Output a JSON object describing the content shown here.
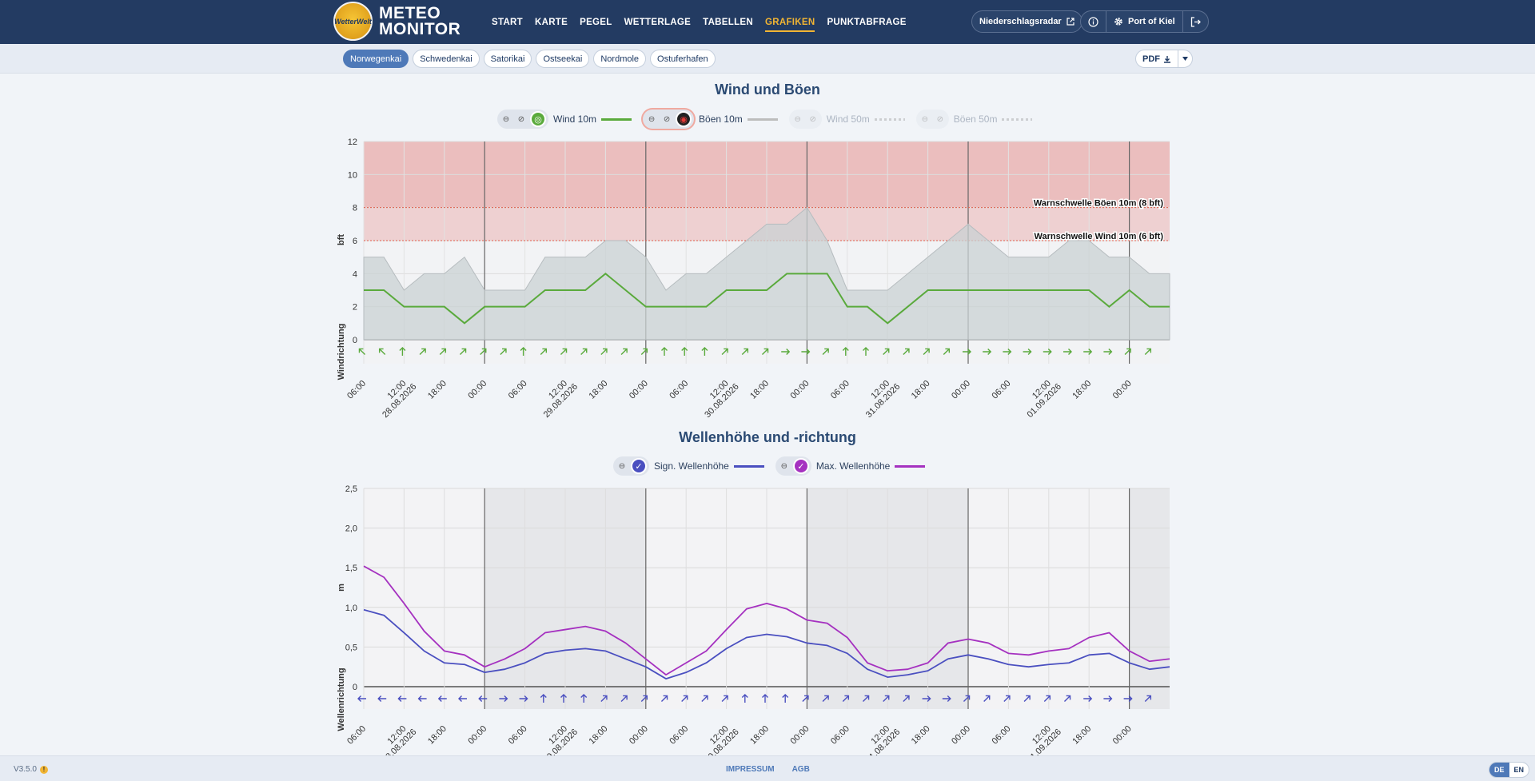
{
  "header": {
    "logo_badge": "WetterWelt",
    "logo_line1": "METEO",
    "logo_line2": "MONITOR",
    "nav": [
      {
        "label": "START",
        "active": false
      },
      {
        "label": "KARTE",
        "active": false
      },
      {
        "label": "PEGEL",
        "active": false
      },
      {
        "label": "WETTERLAGE",
        "active": false
      },
      {
        "label": "TABELLEN",
        "active": false
      },
      {
        "label": "GRAFIKEN",
        "active": true
      },
      {
        "label": "PUNKTABFRAGE",
        "active": false
      }
    ],
    "radar_label": "Niederschlagsradar",
    "location_label": "Port of Kiel"
  },
  "subnav": {
    "locations": [
      "Norwegenkai",
      "Schwedenkai",
      "Satorikai",
      "Ostseekai",
      "Nordmole",
      "Ostuferhafen"
    ],
    "active_index": 0,
    "pdf_label": "PDF"
  },
  "colors": {
    "header_bg": "#233b62",
    "accent": "#f2b533",
    "wind10": "#5aaa3c",
    "gust10": "#bdbdbd",
    "sign_wave": "#4a4fc0",
    "max_wave": "#a531c0",
    "warn_zone": "#e8a6a6"
  },
  "time_axis": {
    "ticks": [
      "06:00",
      "12:00",
      "18:00",
      "00:00",
      "06:00",
      "12:00",
      "18:00",
      "00:00",
      "06:00",
      "12:00",
      "18:00",
      "00:00",
      "06:00",
      "12:00",
      "18:00",
      "00:00",
      "06:00",
      "12:00",
      "18:00",
      "00:00"
    ],
    "dates": [
      {
        "tick_index": 1,
        "label": "28.08.2026"
      },
      {
        "tick_index": 5,
        "label": "29.08.2026"
      },
      {
        "tick_index": 9,
        "label": "30.08.2026"
      },
      {
        "tick_index": 13,
        "label": "31.08.2026"
      },
      {
        "tick_index": 17,
        "label": "01.09.2026"
      }
    ]
  },
  "chart_data": [
    {
      "type": "area",
      "title": "Wind und Böen",
      "ylabel": "bft",
      "y2label": "Windrichtung",
      "ylim": [
        0,
        12
      ],
      "yticks": [
        "0",
        "2",
        "4",
        "6",
        "8",
        "10",
        "12"
      ],
      "x_hours_from_start": [
        0,
        3,
        6,
        9,
        12,
        15,
        18,
        21,
        24,
        27,
        30,
        33,
        36,
        39,
        42,
        45,
        48,
        51,
        54,
        57,
        60,
        63,
        66,
        69,
        72,
        75,
        78,
        81,
        84,
        87,
        90,
        93,
        96,
        99,
        102,
        105,
        108,
        111,
        114,
        117
      ],
      "thresholds": [
        {
          "label": "Warnschwelle Böen 10m (8 bft)",
          "value": 8
        },
        {
          "label": "Warnschwelle Wind 10m (6 bft)",
          "value": 6
        }
      ],
      "series": [
        {
          "name": "Wind 10m",
          "enabled": true,
          "color": "#5aaa3c",
          "values": [
            3,
            3,
            2,
            2,
            2,
            1,
            2,
            2,
            2,
            3,
            3,
            3,
            4,
            3,
            2,
            2,
            2,
            2,
            3,
            3,
            3,
            4,
            4,
            4,
            2,
            2,
            1,
            2,
            3,
            3,
            3,
            3,
            3,
            3,
            3,
            3,
            3,
            2,
            3,
            2
          ]
        },
        {
          "name": "Böen 10m",
          "enabled": true,
          "color": "#bdbdbd",
          "values": [
            5,
            5,
            3,
            4,
            4,
            5,
            3,
            3,
            3,
            5,
            5,
            5,
            6,
            6,
            5,
            3,
            4,
            4,
            5,
            6,
            7,
            7,
            8,
            6,
            3,
            3,
            3,
            4,
            5,
            6,
            7,
            6,
            5,
            5,
            5,
            6,
            6,
            5,
            5,
            4
          ]
        },
        {
          "name": "Wind 50m",
          "enabled": false,
          "color": "#5aaa3c",
          "values": []
        },
        {
          "name": "Böen 50m",
          "enabled": false,
          "color": "#bdbdbd",
          "values": []
        }
      ],
      "direction_arrows_deg": [
        315,
        315,
        0,
        45,
        45,
        45,
        45,
        45,
        0,
        45,
        45,
        45,
        45,
        45,
        45,
        0,
        0,
        0,
        45,
        45,
        45,
        90,
        90,
        45,
        0,
        0,
        45,
        45,
        45,
        45,
        90,
        90,
        90,
        90,
        90,
        90,
        90,
        90,
        45,
        45
      ]
    },
    {
      "type": "line",
      "title": "Wellenhöhe und -richtung",
      "ylabel": "m",
      "y2label": "Wellenrichtung",
      "ylim": [
        0,
        2.5
      ],
      "yticks": [
        "0",
        "0,5",
        "1,0",
        "1,5",
        "2,0",
        "2,5"
      ],
      "x_hours_from_start": [
        0,
        3,
        6,
        9,
        12,
        15,
        18,
        21,
        24,
        27,
        30,
        33,
        36,
        39,
        42,
        45,
        48,
        51,
        54,
        57,
        60,
        63,
        66,
        69,
        72,
        75,
        78,
        81,
        84,
        87,
        90,
        93,
        96,
        99,
        102,
        105,
        108,
        111,
        114,
        117
      ],
      "series": [
        {
          "name": "Sign. Wellenhöhe",
          "color": "#4a4fc0",
          "values": [
            0.97,
            0.9,
            0.68,
            0.45,
            0.3,
            0.28,
            0.18,
            0.22,
            0.3,
            0.42,
            0.46,
            0.48,
            0.45,
            0.35,
            0.25,
            0.1,
            0.18,
            0.3,
            0.48,
            0.62,
            0.66,
            0.63,
            0.55,
            0.52,
            0.42,
            0.22,
            0.12,
            0.15,
            0.2,
            0.35,
            0.4,
            0.35,
            0.28,
            0.25,
            0.28,
            0.3,
            0.4,
            0.42,
            0.3,
            0.22
          ]
        },
        {
          "name": "Max. Wellenhöhe",
          "color": "#a531c0",
          "values": [
            1.52,
            1.38,
            1.05,
            0.7,
            0.45,
            0.4,
            0.25,
            0.35,
            0.48,
            0.68,
            0.72,
            0.76,
            0.7,
            0.55,
            0.35,
            0.15,
            0.3,
            0.45,
            0.72,
            0.98,
            1.05,
            0.98,
            0.84,
            0.8,
            0.62,
            0.3,
            0.2,
            0.22,
            0.3,
            0.55,
            0.6,
            0.55,
            0.42,
            0.4,
            0.45,
            0.48,
            0.62,
            0.68,
            0.45,
            0.32
          ]
        }
      ],
      "direction_arrows_deg": [
        270,
        270,
        270,
        270,
        270,
        270,
        270,
        90,
        90,
        0,
        0,
        0,
        45,
        45,
        45,
        45,
        45,
        45,
        45,
        0,
        0,
        0,
        45,
        45,
        45,
        45,
        45,
        45,
        90,
        90,
        45,
        45,
        45,
        45,
        45,
        45,
        90,
        90,
        90,
        45
      ]
    }
  ],
  "footer": {
    "version": "V3.5.0",
    "links": [
      "IMPRESSUM",
      "AGB"
    ],
    "languages": [
      "DE",
      "EN"
    ],
    "active_language": "DE"
  }
}
